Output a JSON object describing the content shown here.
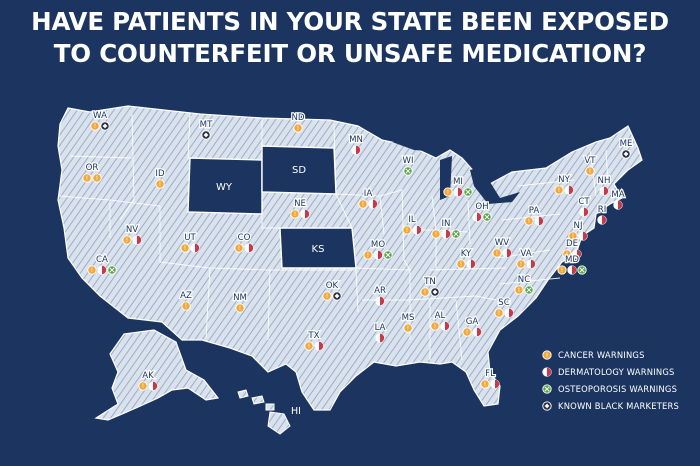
{
  "title_line1": "HAVE PATIENTS IN YOUR STATE BEEN EXPOSED",
  "title_line2": "TO COUNTERFEIT OR UNSAFE MEDICATION?",
  "colors": {
    "background": "#1b3560",
    "land": "#d5dfeb",
    "dark_state": "#1b3560",
    "cancer": "#f2a93b",
    "dermatology": "#c83a4a",
    "osteoporosis": "#5aa646",
    "black_market": "#2a2f3d"
  },
  "legend": [
    {
      "key": "cancer",
      "label": "CANCER WARNINGS"
    },
    {
      "key": "dermatology",
      "label": "DERMATOLOGY WARNINGS"
    },
    {
      "key": "osteoporosis",
      "label": "OSTEOPOROSIS WARNINGS"
    },
    {
      "key": "black_market",
      "label": "KNOWN BLACK MARKETERS"
    }
  ],
  "states": [
    {
      "abbr": "WA",
      "markers": [
        "cancer",
        "black_market"
      ]
    },
    {
      "abbr": "OR",
      "markers": [
        "cancer",
        "cancer"
      ]
    },
    {
      "abbr": "CA",
      "markers": [
        "cancer",
        "dermatology",
        "osteoporosis"
      ]
    },
    {
      "abbr": "NV",
      "markers": [
        "cancer",
        "dermatology"
      ]
    },
    {
      "abbr": "ID",
      "markers": [
        "cancer"
      ]
    },
    {
      "abbr": "MT",
      "markers": [
        "black_market"
      ]
    },
    {
      "abbr": "WY",
      "markers": []
    },
    {
      "abbr": "UT",
      "markers": [
        "cancer",
        "dermatology"
      ]
    },
    {
      "abbr": "CO",
      "markers": [
        "cancer",
        "dermatology"
      ]
    },
    {
      "abbr": "AZ",
      "markers": [
        "cancer"
      ]
    },
    {
      "abbr": "NM",
      "markers": [
        "cancer"
      ]
    },
    {
      "abbr": "ND",
      "markers": [
        "cancer"
      ]
    },
    {
      "abbr": "SD",
      "markers": []
    },
    {
      "abbr": "NE",
      "markers": [
        "cancer",
        "dermatology"
      ]
    },
    {
      "abbr": "KS",
      "markers": []
    },
    {
      "abbr": "OK",
      "markers": [
        "cancer",
        "black_market"
      ]
    },
    {
      "abbr": "TX",
      "markers": [
        "cancer",
        "dermatology"
      ]
    },
    {
      "abbr": "MN",
      "markers": [
        "dermatology"
      ]
    },
    {
      "abbr": "IA",
      "markers": [
        "cancer",
        "dermatology"
      ]
    },
    {
      "abbr": "MO",
      "markers": [
        "cancer",
        "dermatology",
        "osteoporosis"
      ]
    },
    {
      "abbr": "AR",
      "markers": [
        "dermatology"
      ]
    },
    {
      "abbr": "LA",
      "markers": [
        "dermatology"
      ]
    },
    {
      "abbr": "WI",
      "markers": [
        "osteoporosis"
      ]
    },
    {
      "abbr": "IL",
      "markers": [
        "cancer",
        "dermatology"
      ]
    },
    {
      "abbr": "MS",
      "markers": [
        "cancer"
      ]
    },
    {
      "abbr": "MI",
      "markers": [
        "cancer",
        "dermatology",
        "osteoporosis"
      ]
    },
    {
      "abbr": "IN",
      "markers": [
        "cancer",
        "dermatology",
        "osteoporosis"
      ]
    },
    {
      "abbr": "OH",
      "markers": [
        "dermatology",
        "osteoporosis"
      ]
    },
    {
      "abbr": "KY",
      "markers": [
        "cancer",
        "dermatology"
      ]
    },
    {
      "abbr": "TN",
      "markers": [
        "cancer",
        "black_market"
      ]
    },
    {
      "abbr": "AL",
      "markers": [
        "cancer",
        "dermatology"
      ]
    },
    {
      "abbr": "GA",
      "markers": [
        "cancer",
        "dermatology"
      ]
    },
    {
      "abbr": "FL",
      "markers": [
        "cancer",
        "dermatology"
      ]
    },
    {
      "abbr": "SC",
      "markers": [
        "cancer",
        "dermatology"
      ]
    },
    {
      "abbr": "NC",
      "markers": [
        "cancer",
        "osteoporosis"
      ]
    },
    {
      "abbr": "VA",
      "markers": [
        "cancer",
        "dermatology"
      ]
    },
    {
      "abbr": "WV",
      "markers": [
        "cancer",
        "dermatology"
      ]
    },
    {
      "abbr": "PA",
      "markers": [
        "cancer",
        "dermatology"
      ]
    },
    {
      "abbr": "NY",
      "markers": [
        "cancer",
        "dermatology"
      ]
    },
    {
      "abbr": "VT",
      "markers": [
        "cancer"
      ]
    },
    {
      "abbr": "NH",
      "markers": [
        "dermatology"
      ]
    },
    {
      "abbr": "ME",
      "markers": [
        "black_market"
      ]
    },
    {
      "abbr": "MA",
      "markers": [
        "dermatology"
      ]
    },
    {
      "abbr": "RI",
      "markers": [
        "dermatology"
      ]
    },
    {
      "abbr": "CT",
      "markers": [
        "dermatology"
      ]
    },
    {
      "abbr": "NJ",
      "markers": [
        "cancer",
        "dermatology"
      ]
    },
    {
      "abbr": "DE",
      "markers": [
        "cancer",
        "dermatology"
      ]
    },
    {
      "abbr": "MD",
      "markers": [
        "cancer",
        "dermatology",
        "osteoporosis"
      ]
    },
    {
      "abbr": "AK",
      "markers": [
        "cancer",
        "dermatology"
      ]
    },
    {
      "abbr": "HI",
      "markers": []
    }
  ]
}
